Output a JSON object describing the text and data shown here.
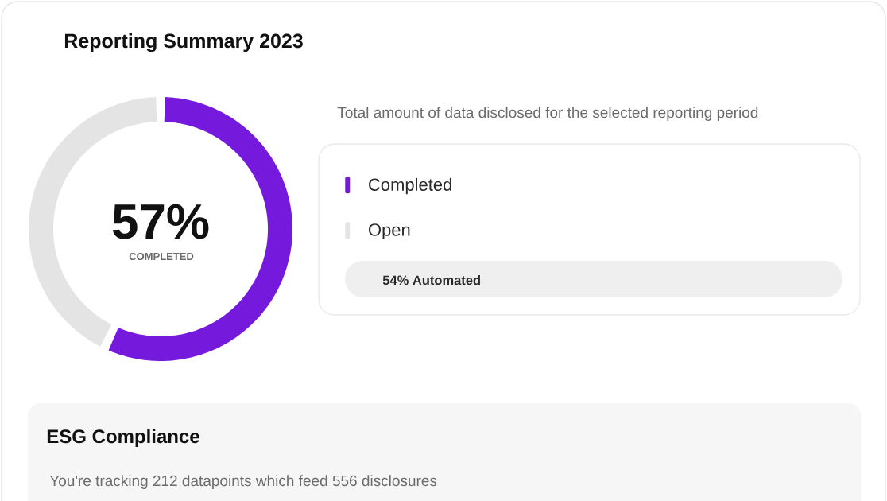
{
  "chart_data": {
    "type": "donut",
    "title": "Reporting Summary 2023",
    "subtitle": "Total amount of data disclosed for the selected reporting period",
    "categories": [
      "Completed",
      "Open"
    ],
    "values": [
      57,
      43
    ],
    "colors": [
      "#7519dc",
      "#e4e4e4"
    ],
    "legend": "right",
    "annotations": [
      "57%",
      "COMPLETED",
      "54% Automated",
      "ESG Compliance",
      "You're tracking 212 datapoints which feed 556 disclosures"
    ]
  }
}
